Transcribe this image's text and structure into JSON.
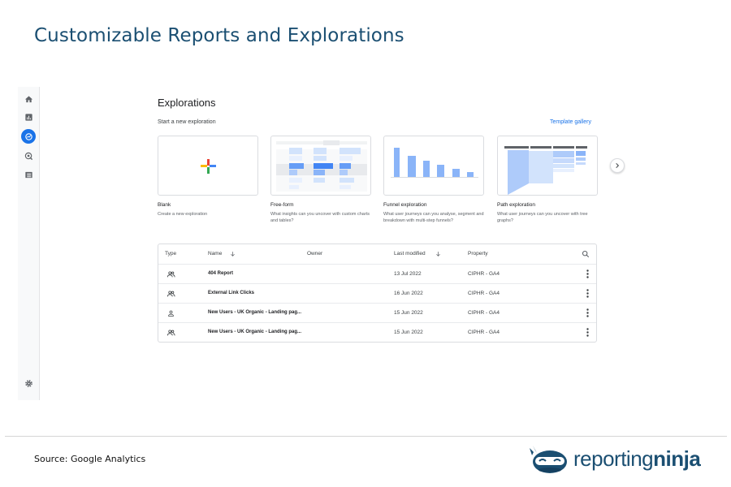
{
  "page": {
    "heading": "Customizable Reports and Explorations",
    "source": "Source: Google Analytics",
    "logo": {
      "part1": "reporting",
      "part2": "ninja"
    }
  },
  "nav": {
    "items": [
      {
        "icon": "home-icon"
      },
      {
        "icon": "bar-chart-icon"
      },
      {
        "icon": "explore-icon",
        "active": true
      },
      {
        "icon": "advertising-icon"
      },
      {
        "icon": "list-icon"
      }
    ],
    "settings_icon": "settings-icon"
  },
  "explorations": {
    "title": "Explorations",
    "subtitle": "Start a new exploration",
    "template_gallery": "Template gallery",
    "cards": [
      {
        "label": "Blank",
        "desc": "Create a new exploration"
      },
      {
        "label": "Free-form",
        "desc": "What insights can you uncover with custom charts and tables?"
      },
      {
        "label": "Funnel exploration",
        "desc": "What user journeys can you analyse, segment and breakdown with multi-step funnels?"
      },
      {
        "label": "Path exploration",
        "desc": "What user journeys can you uncover with tree graphs?"
      }
    ]
  },
  "table": {
    "headers": {
      "type": "Type",
      "name": "Name",
      "owner": "Owner",
      "last_modified": "Last modified",
      "property": "Property"
    },
    "rows": [
      {
        "name": "404 Report",
        "owner": "",
        "modified": "13 Jul 2022",
        "property": "CIPHR - GA4",
        "type_icon": "group-icon"
      },
      {
        "name": "External Link Clicks",
        "owner": "",
        "modified": "16 Jun 2022",
        "property": "CIPHR - GA4",
        "type_icon": "group-icon"
      },
      {
        "name": "New Users - UK Organic - Landing pag...",
        "owner": "",
        "modified": "15 Jun 2022",
        "property": "CIPHR - GA4",
        "type_icon": "person-icon"
      },
      {
        "name": "New Users - UK Organic - Landing pag...",
        "owner": "",
        "modified": "15 Jun 2022",
        "property": "CIPHR - GA4",
        "type_icon": "group-icon"
      }
    ]
  },
  "colors": {
    "accent": "#1a73e8",
    "bar": "#8ab4f8",
    "heading": "#1b4f72"
  }
}
